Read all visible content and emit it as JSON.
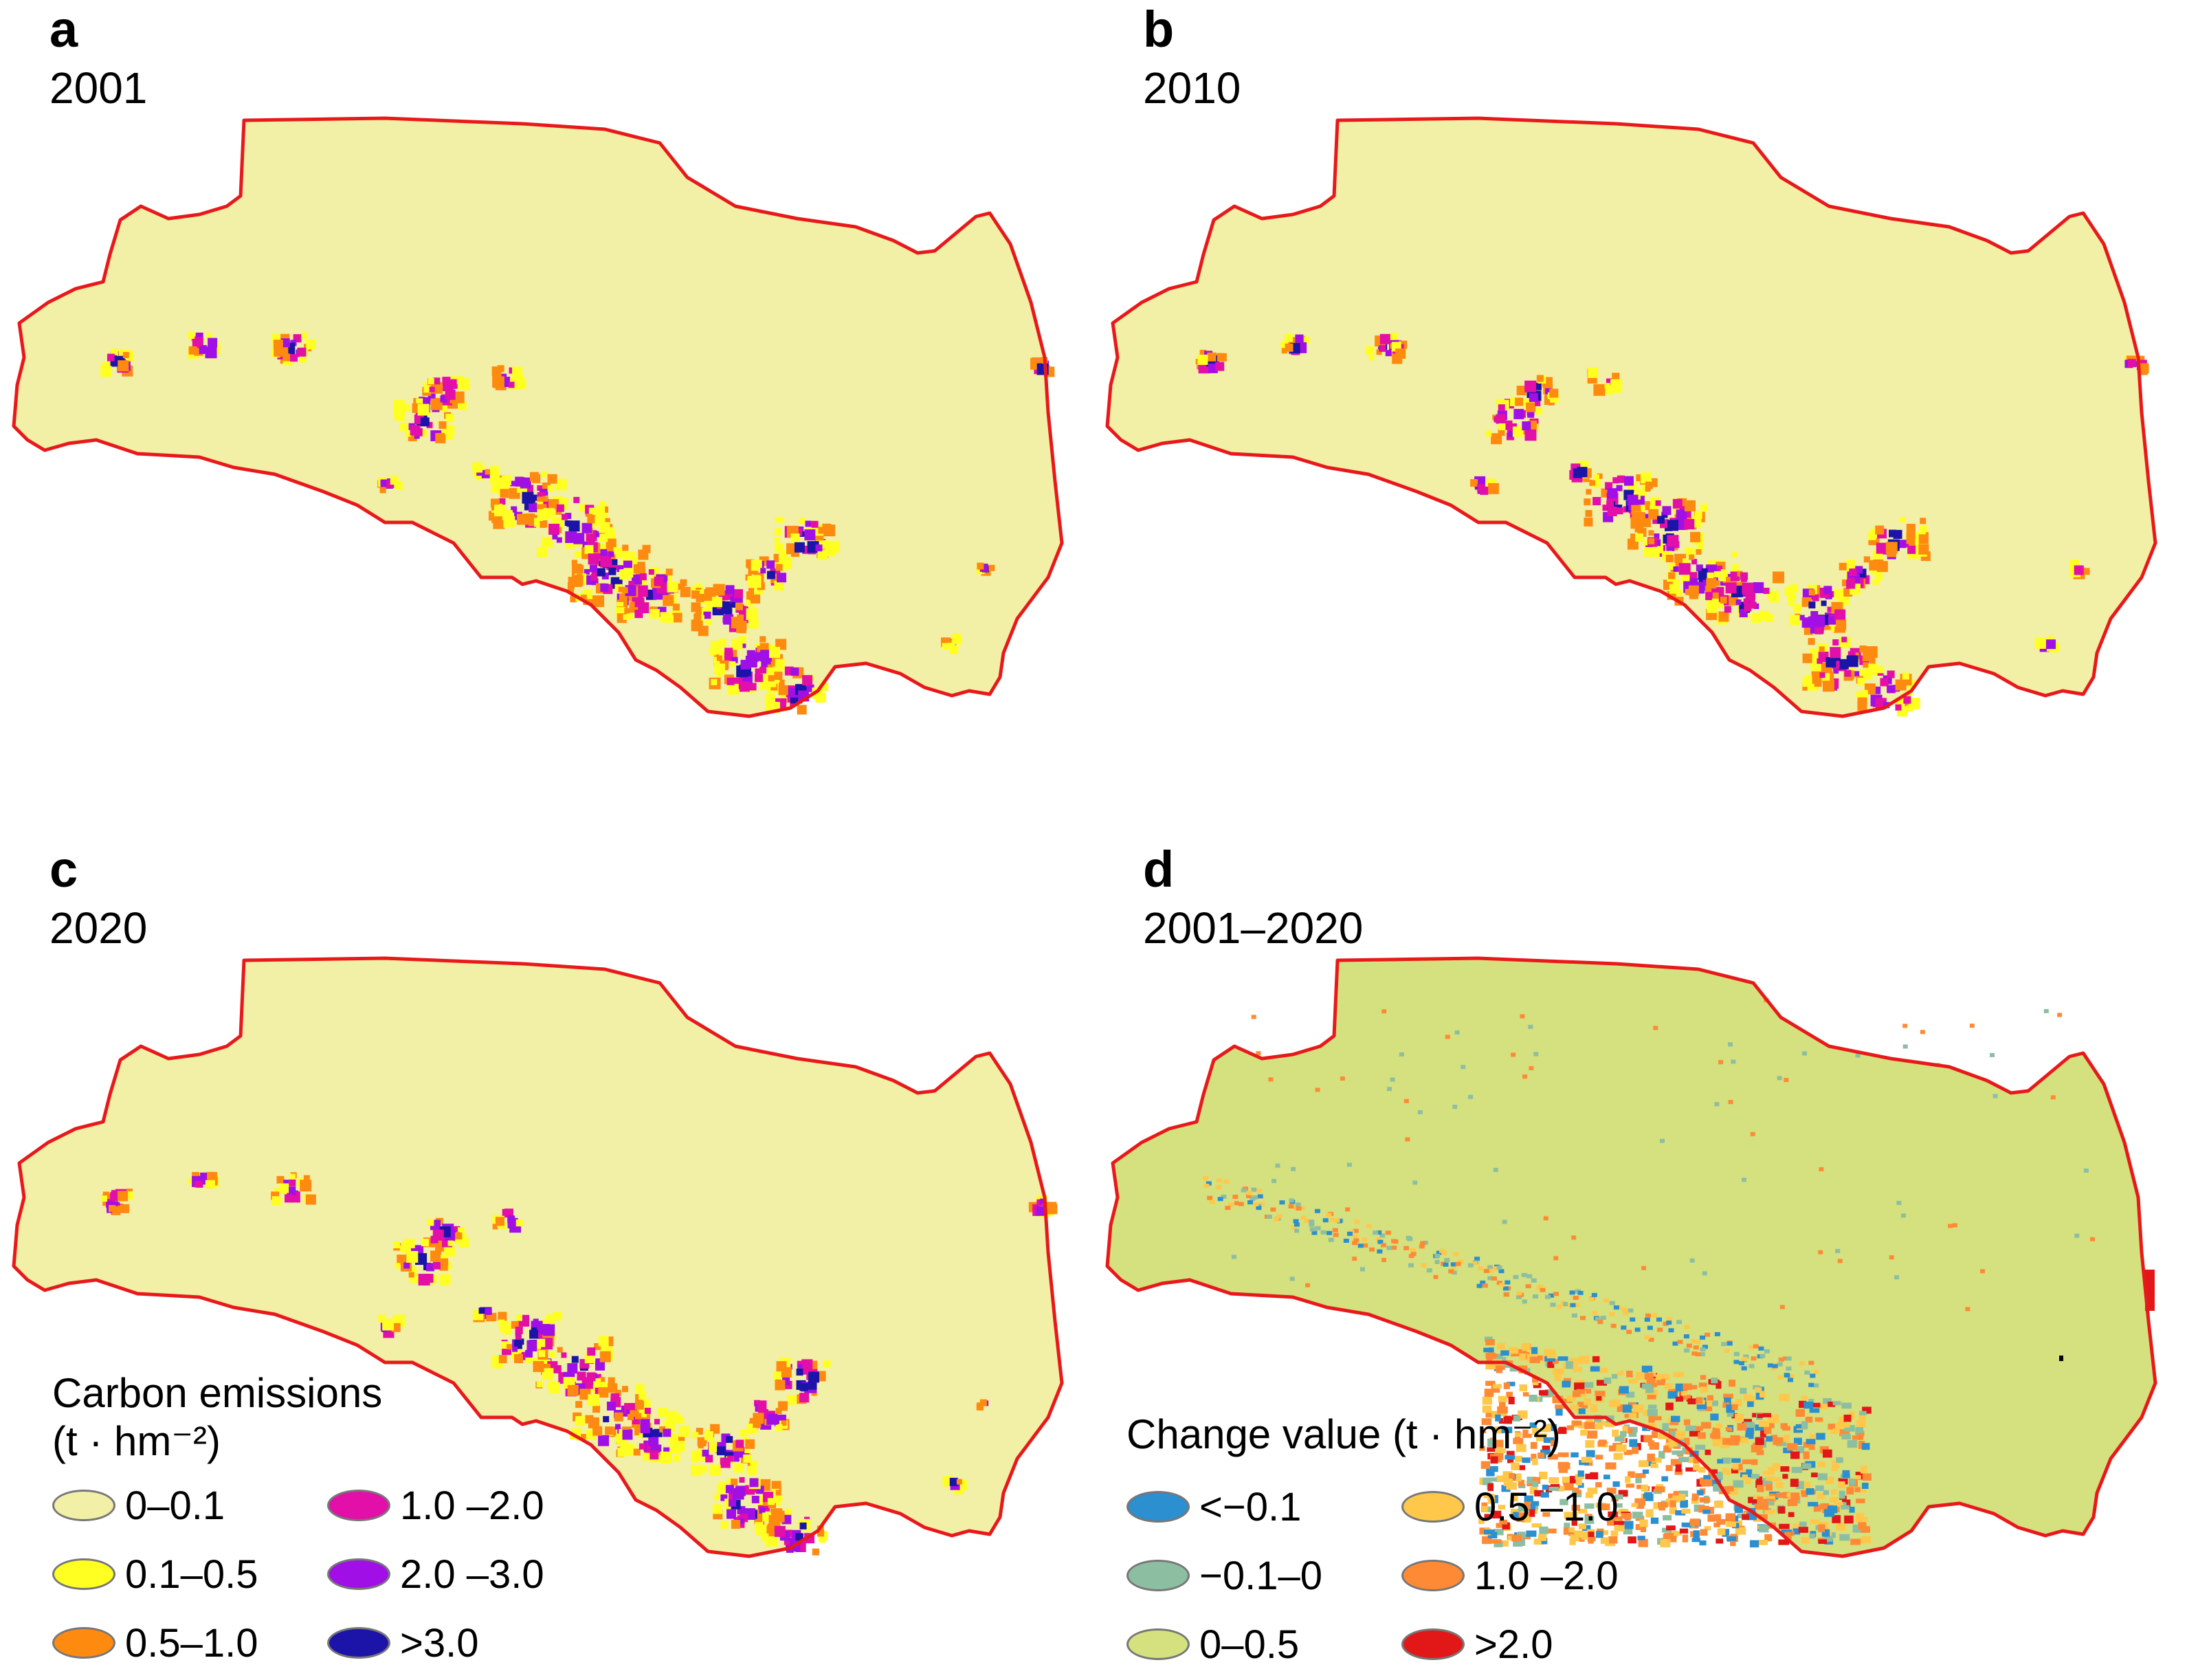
{
  "panels": [
    {
      "letter": "a",
      "year": "2001"
    },
    {
      "letter": "b",
      "year": "2010"
    },
    {
      "letter": "c",
      "year": "2020"
    },
    {
      "letter": "d",
      "year": "2001–2020"
    }
  ],
  "legend_emissions": {
    "title_line1": "Carbon emissions",
    "title_line2": "(t · hm⁻²)",
    "items": [
      {
        "label": "0–0.1",
        "color": "#f2efa6"
      },
      {
        "label": "1.0 –2.0",
        "color": "#e20fa8"
      },
      {
        "label": "0.1–0.5",
        "color": "#ffff22"
      },
      {
        "label": "2.0 –3.0",
        "color": "#a010e6"
      },
      {
        "label": "0.5–1.0",
        "color": "#ff8a10"
      },
      {
        "label": ">3.0",
        "color": "#1c14a8"
      }
    ]
  },
  "legend_change": {
    "title": "Change value (t · hm⁻²)",
    "items": [
      {
        "label": "<−0.1",
        "color": "#2b8fd0"
      },
      {
        "label": "0.5 –1.0",
        "color": "#ffc84a"
      },
      {
        "label": "−0.1–0",
        "color": "#8cbfa2"
      },
      {
        "label": "1.0 –2.0",
        "color": "#ff8a35"
      },
      {
        "label": "0–0.5",
        "color": "#d5e07e"
      },
      {
        "label": ">2.0",
        "color": "#e21818"
      }
    ]
  },
  "colors": {
    "boundary": "#e8191b",
    "emission_fill": "#f2efa6",
    "change_fill": "#d5e07e"
  }
}
